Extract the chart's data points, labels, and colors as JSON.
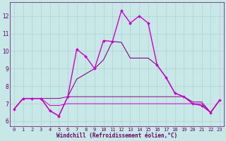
{
  "xlabel": "Windchill (Refroidissement éolien,°C)",
  "background_color": "#c8e8e8",
  "line_color_bright": "#cc00cc",
  "line_color_dark": "#880088",
  "grid_color": "#aacccc",
  "hours": [
    0,
    1,
    2,
    3,
    4,
    5,
    6,
    7,
    8,
    9,
    10,
    11,
    12,
    13,
    14,
    15,
    16,
    17,
    18,
    19,
    20,
    21,
    22,
    23
  ],
  "ylim": [
    5.7,
    12.8
  ],
  "yticks": [
    6,
    7,
    8,
    9,
    10,
    11,
    12
  ],
  "series_main": [
    6.7,
    7.3,
    7.3,
    7.3,
    6.6,
    6.3,
    7.4,
    10.1,
    9.7,
    9.0,
    10.6,
    10.55,
    12.3,
    11.6,
    12.0,
    11.6,
    9.2,
    8.5,
    7.6,
    7.4,
    7.0,
    6.9,
    6.5,
    7.2
  ],
  "series2": [
    6.7,
    7.3,
    7.3,
    7.3,
    6.6,
    6.3,
    7.4,
    8.4,
    8.7,
    9.0,
    9.5,
    10.55,
    10.5,
    9.6,
    9.6,
    9.6,
    9.2,
    8.5,
    7.6,
    7.4,
    7.0,
    6.9,
    6.5,
    7.2
  ],
  "series3": [
    6.7,
    7.3,
    7.3,
    7.3,
    7.3,
    7.3,
    7.4,
    7.4,
    7.4,
    7.4,
    7.4,
    7.4,
    7.4,
    7.4,
    7.4,
    7.4,
    7.4,
    7.4,
    7.4,
    7.4,
    7.1,
    7.1,
    6.5,
    7.2
  ],
  "series4": [
    6.7,
    7.3,
    7.3,
    7.3,
    6.9,
    6.9,
    7.0,
    7.0,
    7.0,
    7.0,
    7.0,
    7.0,
    7.0,
    7.0,
    7.0,
    7.0,
    7.0,
    7.0,
    7.0,
    7.0,
    7.0,
    7.0,
    6.5,
    7.2
  ],
  "font_color": "#660066",
  "tick_fontsize": 5.0,
  "xlabel_fontsize": 5.5
}
